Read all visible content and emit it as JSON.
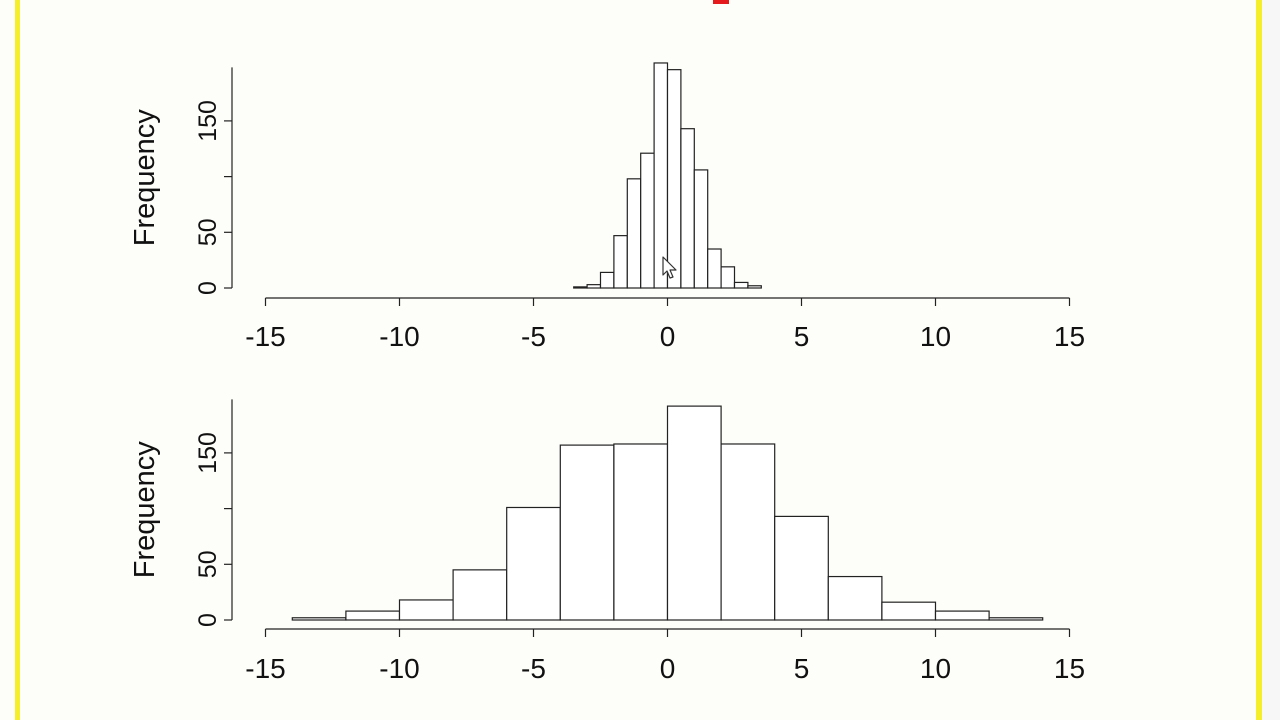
{
  "colors": {
    "background": "#fdfdf9",
    "frame_yellow": "#f4ef2a",
    "accent_red": "#e41a1c",
    "bar_fill": "#ffffff",
    "bar_stroke": "#222222"
  },
  "chart_data": [
    {
      "type": "bar",
      "subtype": "histogram",
      "title": "",
      "xlabel": "",
      "ylabel": "Frequency",
      "xlim": [
        -15,
        15
      ],
      "ylim": [
        0,
        198
      ],
      "x_ticks": [
        -15,
        -10,
        -5,
        0,
        5,
        10,
        15
      ],
      "y_ticks": [
        0,
        50,
        150
      ],
      "grid": false,
      "legend": "none",
      "bin_edges": [
        -3.5,
        -3.0,
        -2.5,
        -2.0,
        -1.5,
        -1.0,
        -0.5,
        0.0,
        0.5,
        1.0,
        1.5,
        2.0,
        2.5,
        3.0,
        3.5
      ],
      "values": [
        1,
        3,
        14,
        47,
        98,
        121,
        202,
        196,
        143,
        106,
        35,
        19,
        5,
        2
      ]
    },
    {
      "type": "bar",
      "subtype": "histogram",
      "title": "",
      "xlabel": "",
      "ylabel": "Frequency",
      "xlim": [
        -15,
        15
      ],
      "ylim": [
        0,
        198
      ],
      "x_ticks": [
        -15,
        -10,
        -5,
        0,
        5,
        10,
        15
      ],
      "y_ticks": [
        0,
        50,
        150
      ],
      "grid": false,
      "legend": "none",
      "bin_edges": [
        -14,
        -12,
        -10,
        -8,
        -6,
        -4,
        -2,
        0,
        2,
        4,
        6,
        8,
        10,
        12,
        14
      ],
      "values": [
        2,
        8,
        18,
        45,
        101,
        157,
        158,
        192,
        158,
        93,
        39,
        16,
        8,
        2
      ]
    }
  ]
}
